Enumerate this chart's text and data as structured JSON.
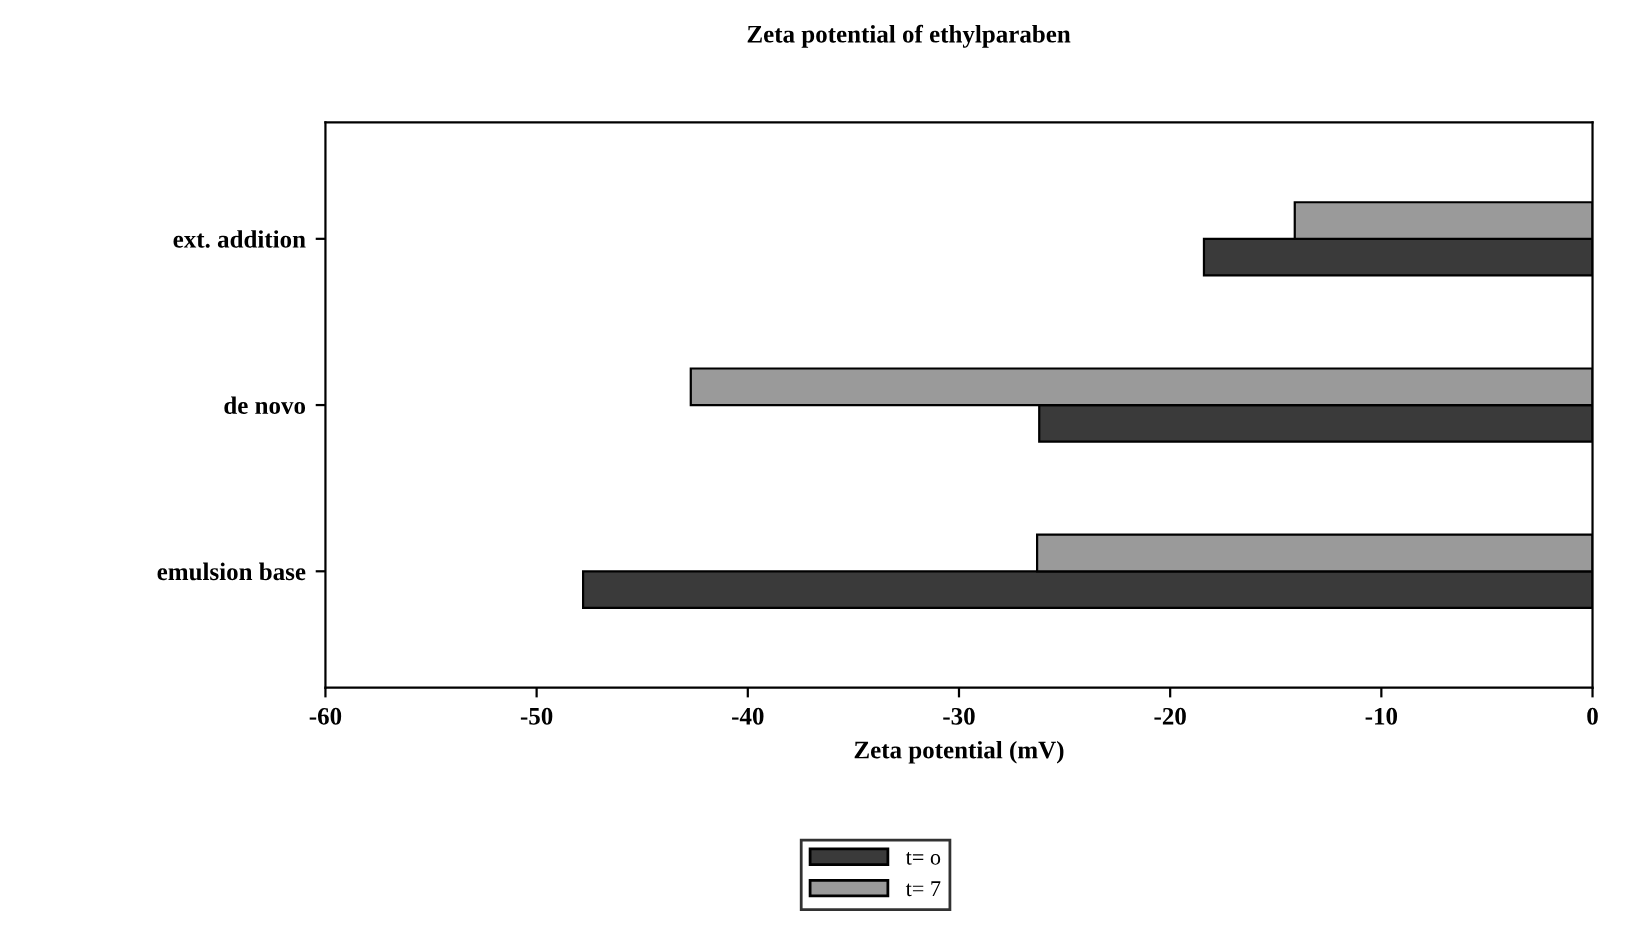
{
  "chart_data": {
    "type": "bar",
    "orientation": "horizontal",
    "title": "Zeta potential of ethylparaben",
    "xlabel": "Zeta potential (mV)",
    "categories": [
      "ext. addition",
      "de novo",
      "emulsion base"
    ],
    "series": [
      {
        "name": "t= o",
        "color": "#3a3a3a",
        "values": [
          -18.4,
          -26.2,
          -47.8
        ]
      },
      {
        "name": "t= 7",
        "color": "#9a9a9a",
        "values": [
          -14.1,
          -42.7,
          -26.3
        ]
      }
    ],
    "xlim": [
      -60,
      0
    ],
    "xticks": [
      -60,
      -50,
      -40,
      -30,
      -20,
      -10,
      0
    ],
    "grid": false,
    "legend": "bottom"
  }
}
